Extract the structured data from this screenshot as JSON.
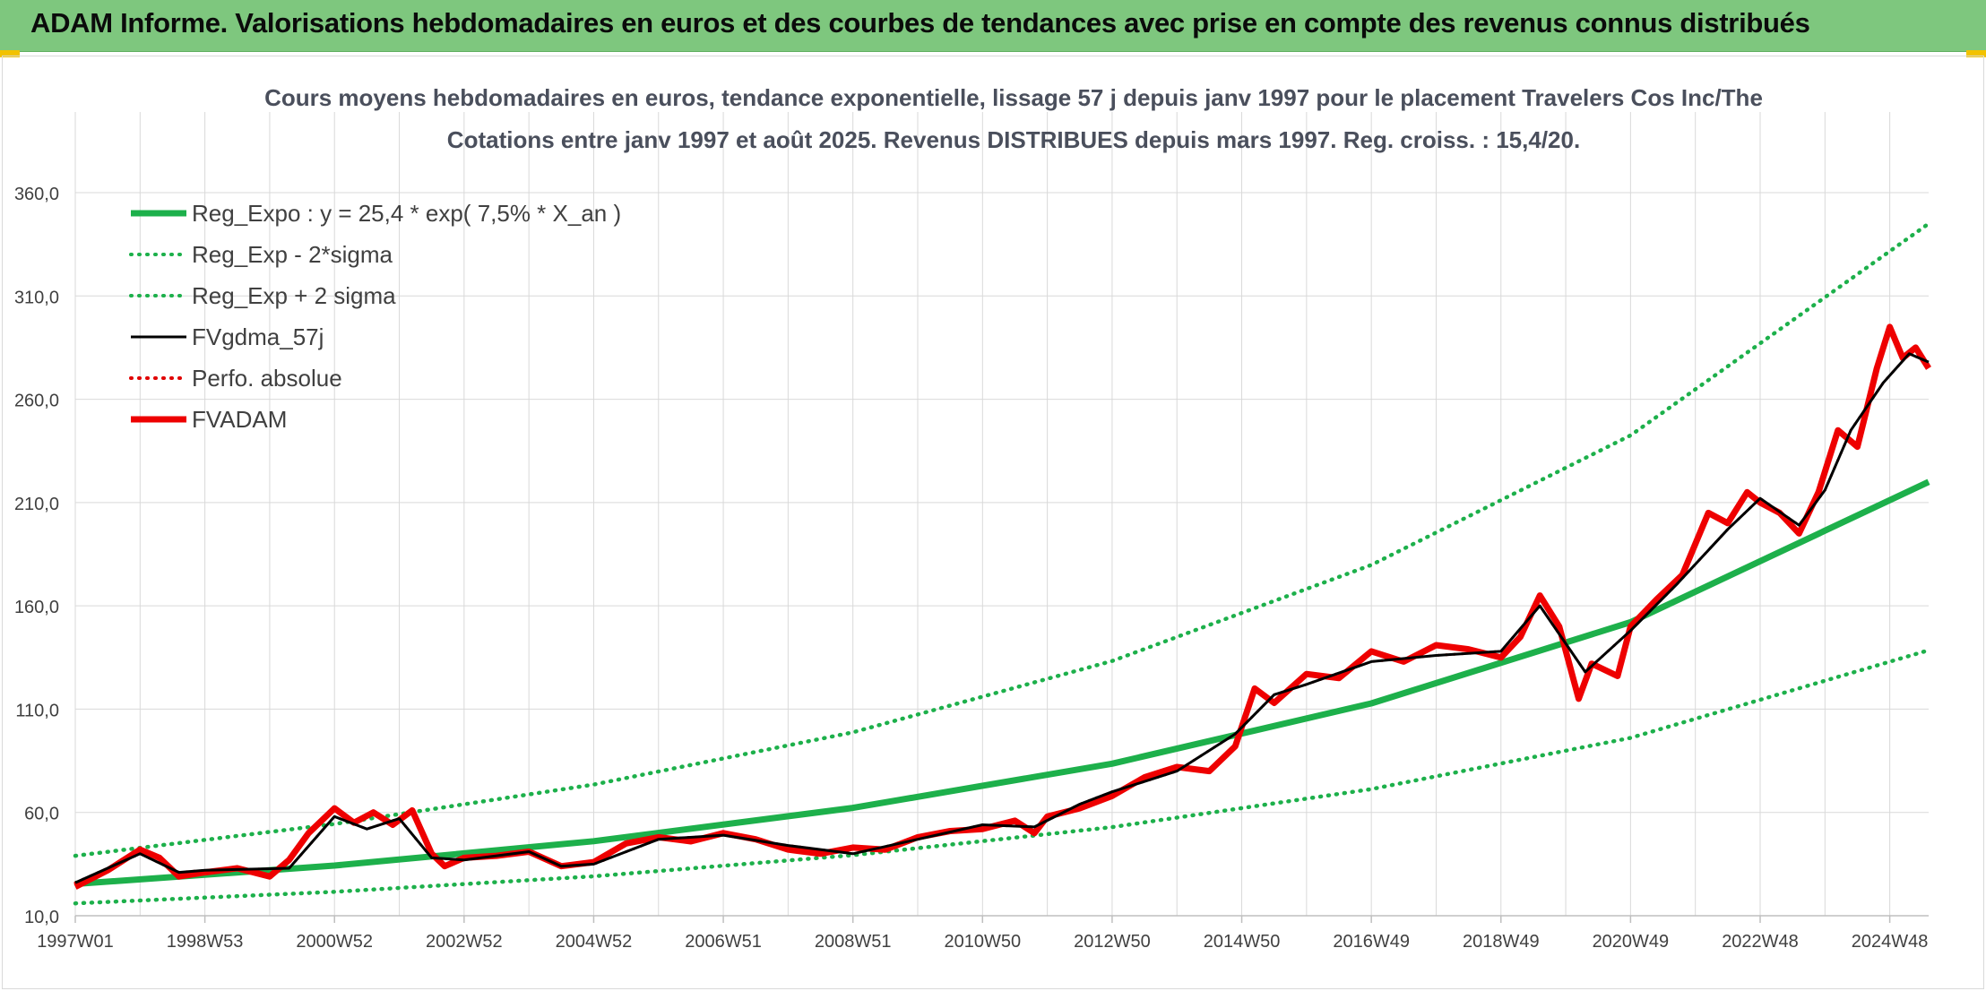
{
  "banner": {
    "title": "ADAM Informe. Valorisations hebdomadaires en euros et des courbes de tendances avec prise en compte des revenus connus distribués"
  },
  "colors": {
    "banner_bg": "#7ec77e",
    "reg": "#1db04b",
    "fvgdma": "#000000",
    "perfo": "#e00000",
    "fvadam": "#ee0000",
    "grid": "#d9d9d9",
    "text": "#404040"
  },
  "chart_data": {
    "type": "line",
    "title": "Cours moyens hebdomadaires en euros, tendance exponentielle, lissage 57 j depuis janv 1997 pour le placement Travelers Cos Inc/The",
    "subtitle": "Cotations entre janv 1997 et août 2025. Revenus DISTRIBUES depuis mars 1997. Reg. croiss. : 15,4/20.",
    "xlabel": "",
    "ylabel": "",
    "ylim": [
      10,
      360
    ],
    "yticks": [
      "10,0",
      "60,0",
      "110,0",
      "160,0",
      "210,0",
      "260,0",
      "310,0",
      "360,0"
    ],
    "xlim": [
      1997.0,
      2025.6
    ],
    "xticks": [
      {
        "x": 1997.0,
        "label": "1997W01"
      },
      {
        "x": 1999.0,
        "label": "1998W53"
      },
      {
        "x": 2001.0,
        "label": "2000W52"
      },
      {
        "x": 2003.0,
        "label": "2002W52"
      },
      {
        "x": 2005.0,
        "label": "2004W52"
      },
      {
        "x": 2007.0,
        "label": "2006W51"
      },
      {
        "x": 2009.0,
        "label": "2008W51"
      },
      {
        "x": 2011.0,
        "label": "2010W50"
      },
      {
        "x": 2013.0,
        "label": "2012W50"
      },
      {
        "x": 2015.0,
        "label": "2014W50"
      },
      {
        "x": 2017.0,
        "label": "2016W49"
      },
      {
        "x": 2019.0,
        "label": "2018W49"
      },
      {
        "x": 2021.0,
        "label": "2020W49"
      },
      {
        "x": 2023.0,
        "label": "2022W48"
      },
      {
        "x": 2025.0,
        "label": "2024W48"
      }
    ],
    "grid": true,
    "legend_position": "top-left",
    "series": [
      {
        "name": "Reg_Expo : y = 25,4 * exp( 7,5% *  X_an )",
        "style": "solid-thick",
        "color": "#1db04b",
        "x": [
          1997.0,
          2001.0,
          2005.0,
          2009.0,
          2013.0,
          2017.0,
          2021.0,
          2025.6
        ],
        "y": [
          25.4,
          34.3,
          46.1,
          62.2,
          83.6,
          112.8,
          152.1,
          220.0
        ]
      },
      {
        "name": "Reg_Exp - 2*sigma",
        "style": "dotted",
        "color": "#1db04b",
        "x": [
          1997.0,
          2001.0,
          2005.0,
          2009.0,
          2013.0,
          2017.0,
          2021.0,
          2025.6
        ],
        "y": [
          16.0,
          21.6,
          29.1,
          39.3,
          52.9,
          71.3,
          96.1,
          138.5
        ]
      },
      {
        "name": "Reg_Exp + 2 sigma",
        "style": "dotted",
        "color": "#1db04b",
        "x": [
          1997.0,
          2001.0,
          2005.0,
          2009.0,
          2013.0,
          2017.0,
          2021.0,
          2025.6
        ],
        "y": [
          39.0,
          54.4,
          73.5,
          98.8,
          133.3,
          179.8,
          242.5,
          345.0
        ]
      },
      {
        "name": "FVgdma_57j",
        "style": "solid",
        "color": "#000000",
        "x": [
          1997.0,
          1998.0,
          1998.6,
          1999.0,
          2000.3,
          2001.0,
          2001.5,
          2002.0,
          2002.5,
          2003.0,
          2004.0,
          2004.5,
          2005.0,
          2006.0,
          2007.0,
          2008.0,
          2009.0,
          2010.0,
          2011.0,
          2011.8,
          2012.5,
          2013.0,
          2014.0,
          2014.9,
          2015.5,
          2016.0,
          2017.0,
          2018.0,
          2019.0,
          2019.6,
          2020.3,
          2021.0,
          2021.7,
          2022.5,
          2023.0,
          2023.6,
          2024.0,
          2024.4,
          2024.9,
          2025.3,
          2025.6
        ],
        "y": [
          26,
          40,
          31,
          32,
          33,
          58,
          52,
          57,
          38,
          37,
          41,
          34,
          35,
          47,
          49,
          44,
          40,
          47,
          54,
          53,
          64,
          70,
          80,
          98,
          117,
          122,
          133,
          136,
          138,
          160,
          128,
          148,
          170,
          197,
          212,
          199,
          216,
          245,
          268,
          282,
          278
        ]
      },
      {
        "name": "Perfo. absolue",
        "style": "dotted",
        "color": "#e00000",
        "x": [
          1997.0,
          1998.0,
          1998.6,
          1999.0,
          2000.3,
          2001.0,
          2001.5,
          2002.0,
          2002.5,
          2003.0,
          2004.0,
          2004.5,
          2005.0,
          2006.0,
          2007.0,
          2008.0,
          2009.0,
          2010.0,
          2011.0,
          2011.8,
          2012.5,
          2013.0,
          2014.0,
          2014.9,
          2015.5,
          2016.0,
          2017.0,
          2018.0,
          2019.0,
          2019.6,
          2020.3,
          2021.0,
          2021.7,
          2022.5,
          2023.0,
          2023.6,
          2024.0,
          2024.4,
          2024.9,
          2025.3,
          2025.6
        ],
        "y": [
          26,
          40,
          31,
          32,
          33,
          58,
          52,
          57,
          38,
          37,
          41,
          34,
          35,
          47,
          49,
          44,
          40,
          47,
          54,
          53,
          64,
          70,
          80,
          98,
          117,
          122,
          133,
          136,
          138,
          160,
          128,
          148,
          170,
          197,
          212,
          199,
          216,
          245,
          268,
          282,
          278
        ]
      },
      {
        "name": "FVADAM",
        "style": "solid-thick",
        "color": "#ee0000",
        "x": [
          1997.0,
          1997.5,
          1998.0,
          1998.3,
          1998.6,
          1999.0,
          1999.5,
          2000.0,
          2000.3,
          2000.6,
          2001.0,
          2001.3,
          2001.6,
          2001.9,
          2002.2,
          2002.5,
          2002.7,
          2003.0,
          2003.5,
          2004.0,
          2004.5,
          2005.0,
          2005.5,
          2006.0,
          2006.5,
          2007.0,
          2007.5,
          2008.0,
          2008.5,
          2009.0,
          2009.5,
          2010.0,
          2010.5,
          2011.0,
          2011.5,
          2011.8,
          2012.0,
          2012.5,
          2013.0,
          2013.5,
          2014.0,
          2014.5,
          2014.9,
          2015.2,
          2015.5,
          2016.0,
          2016.5,
          2017.0,
          2017.5,
          2018.0,
          2018.5,
          2019.0,
          2019.3,
          2019.6,
          2019.9,
          2020.2,
          2020.4,
          2020.8,
          2021.0,
          2021.4,
          2021.8,
          2022.2,
          2022.5,
          2022.8,
          2023.0,
          2023.3,
          2023.6,
          2023.9,
          2024.2,
          2024.5,
          2024.8,
          2025.0,
          2025.2,
          2025.4,
          2025.6
        ],
        "y": [
          24,
          32,
          42,
          38,
          29,
          31,
          33,
          29,
          37,
          50,
          62,
          55,
          60,
          54,
          61,
          40,
          34,
          38,
          39,
          41,
          34,
          36,
          45,
          48,
          46,
          50,
          47,
          42,
          40,
          43,
          42,
          48,
          51,
          52,
          56,
          50,
          58,
          62,
          68,
          77,
          82,
          80,
          92,
          120,
          113,
          127,
          125,
          138,
          133,
          141,
          139,
          135,
          145,
          165,
          150,
          115,
          132,
          126,
          150,
          163,
          175,
          205,
          200,
          215,
          210,
          205,
          195,
          215,
          245,
          237,
          275,
          295,
          280,
          285,
          275
        ]
      }
    ]
  }
}
